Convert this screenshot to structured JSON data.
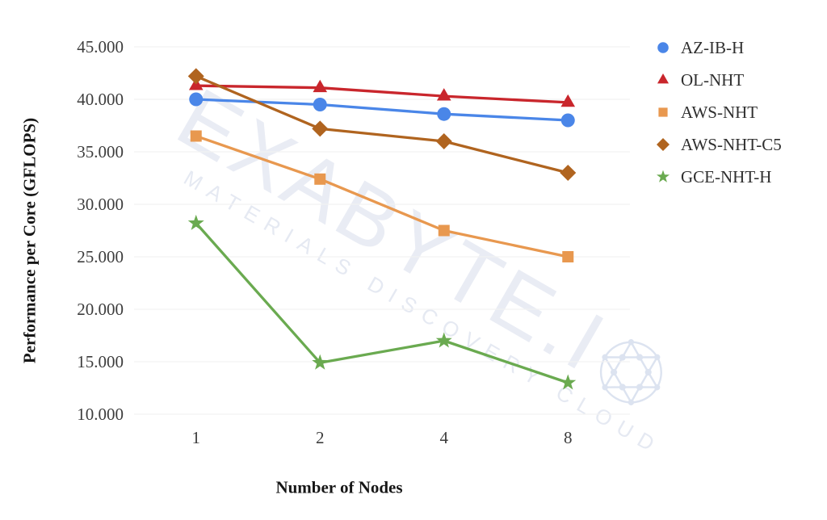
{
  "watermark": {
    "line1": "EXABYTE.I",
    "line2": "MATERIALS DISCOVERY CLOUD",
    "icon": "fullerene-ball-icon",
    "color_text": "#e9ecf4",
    "color_ball": "#dce3f0"
  },
  "chart_data": {
    "type": "line",
    "title": "",
    "xlabel": "Number of Nodes",
    "ylabel": "Performance per Core (GFLOPS)",
    "x_categories": [
      "1",
      "2",
      "4",
      "8"
    ],
    "x_values": [
      1,
      2,
      4,
      8
    ],
    "y_ticks": [
      {
        "value": 45000,
        "label": "45.000"
      },
      {
        "value": 40000,
        "label": "40.000"
      },
      {
        "value": 35000,
        "label": "35.000"
      },
      {
        "value": 30000,
        "label": "30.000"
      },
      {
        "value": 25000,
        "label": "25.000"
      },
      {
        "value": 20000,
        "label": "20.000"
      },
      {
        "value": 15000,
        "label": "15.000"
      },
      {
        "value": 10000,
        "label": "10.000"
      }
    ],
    "ylim": [
      10000,
      45000
    ],
    "grid": "horizontal",
    "grid_color": "#f2f2f2",
    "tick_label_color": "#3d3d3d",
    "legend_position": "right",
    "series": [
      {
        "name": "AZ-IB-H",
        "marker": "circle",
        "color": "#4a86e8",
        "values": [
          40000,
          39500,
          38600,
          38000
        ]
      },
      {
        "name": "OL-NHT",
        "marker": "triangle",
        "color": "#c9262c",
        "values": [
          41300,
          41100,
          40300,
          39700
        ]
      },
      {
        "name": "AWS-NHT",
        "marker": "square",
        "color": "#e8984f",
        "values": [
          36500,
          32400,
          27500,
          25000
        ]
      },
      {
        "name": "AWS-NHT-C5",
        "marker": "diamond",
        "color": "#b0641f",
        "values": [
          42200,
          37200,
          36000,
          33000
        ]
      },
      {
        "name": "GCE-NHT-H",
        "marker": "star",
        "color": "#6aaa50",
        "values": [
          28200,
          14900,
          17000,
          13000
        ]
      }
    ]
  }
}
